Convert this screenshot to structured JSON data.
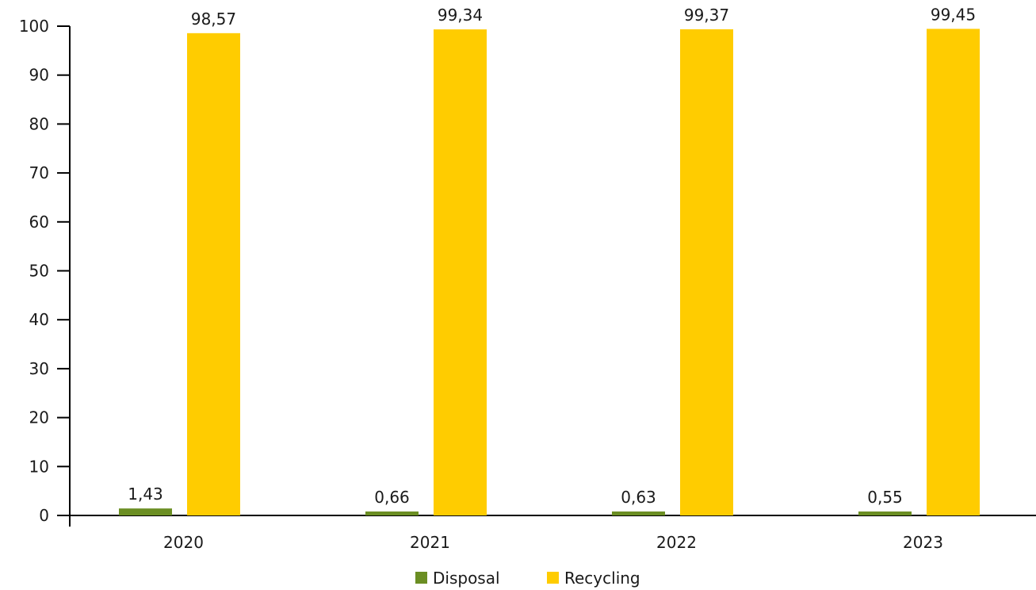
{
  "chart_data": {
    "type": "bar",
    "title": "",
    "xlabel": "",
    "ylabel": "",
    "categories": [
      "2020",
      "2021",
      "2022",
      "2023"
    ],
    "series": [
      {
        "name": "Disposal",
        "color": "#6b8e23",
        "values": [
          1.43,
          0.66,
          0.63,
          0.55
        ],
        "labels": [
          "1,43",
          "0,66",
          "0,63",
          "0,55"
        ]
      },
      {
        "name": "Recycling",
        "color": "#ffcc00",
        "values": [
          98.57,
          99.34,
          99.37,
          99.45
        ],
        "labels": [
          "98,57",
          "99,34",
          "99,37",
          "99,45"
        ]
      }
    ],
    "ylim": [
      0,
      100
    ],
    "yticks": [
      "0",
      "10",
      "20",
      "30",
      "40",
      "50",
      "60",
      "70",
      "80",
      "90",
      "100"
    ],
    "grid": false,
    "legend_position": "bottom-center"
  }
}
